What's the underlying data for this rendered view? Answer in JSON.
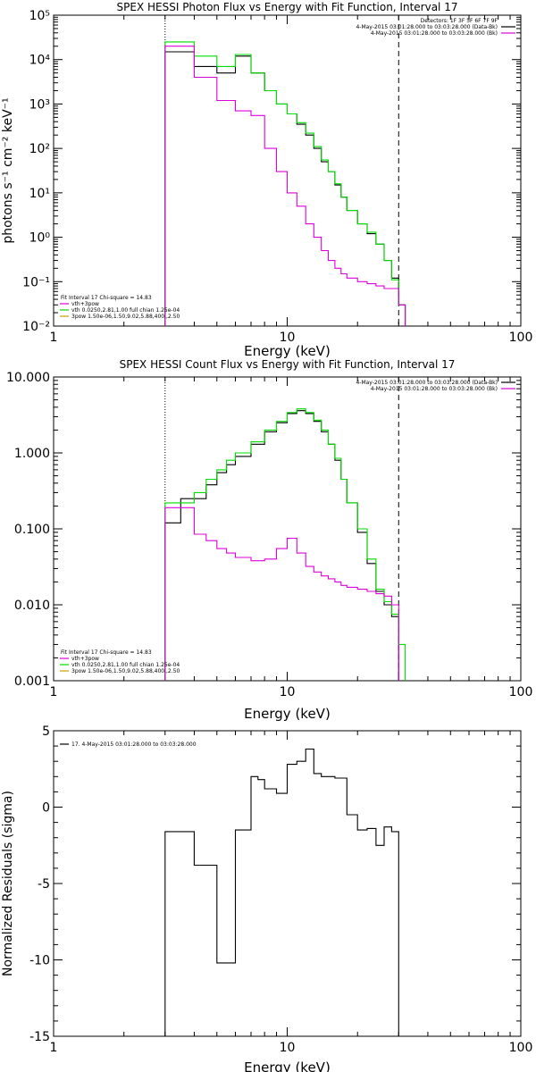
{
  "chart_data": [
    {
      "type": "line",
      "title": "SPEX HESSI Photon Flux vs Energy with Fit Function, Interval 17",
      "xlabel": "Energy (keV)",
      "ylabel": "photons s⁻¹ cm⁻² keV⁻¹",
      "xscale": "log",
      "yscale": "log",
      "xlim": [
        1,
        100
      ],
      "ylim": [
        0.01,
        100000
      ],
      "xticks": [
        1,
        10,
        100
      ],
      "xticklabels": [
        "1",
        "10",
        "100"
      ],
      "yticks": [
        0.01,
        0.1,
        1,
        10,
        100,
        1000,
        10000,
        100000
      ],
      "yticklabels": [
        "10⁻²",
        "10⁻¹",
        "10⁰",
        "10¹",
        "10²",
        "10³",
        "10⁴",
        "10⁵"
      ],
      "legend_right": [
        "Detectors: 1F 3F 5F 6F 7F 9F",
        "4-May-2015 03:01:28.000 to 03:03:28.000 (Data-Bk)",
        "4-May-2015 03:01:28.000 to 03:03:28.000 (Bk)"
      ],
      "legend_left": [
        "Fit Interval 17    Chi-square = 14.83",
        "vth+3pow",
        "vth 0.0250,2.81,1.00  full chian 1.25e-04",
        "3pow 1.50e-06,1.50,9.02,5.88,400.,2.50"
      ],
      "vlines": [
        {
          "x": 3.0,
          "style": "dotted"
        },
        {
          "x": 30.0,
          "style": "dashed"
        }
      ],
      "edges": [
        3.0,
        3.5,
        4.0,
        4.5,
        5.0,
        5.5,
        6.0,
        7.0,
        8.0,
        9.0,
        10.0,
        11.0,
        12.0,
        13.0,
        14.0,
        15.0,
        16.0,
        17.0,
        18.0,
        20.0,
        22.0,
        24.0,
        26.0,
        28.0,
        30.0,
        32.0
      ],
      "series": [
        {
          "color": "#000000",
          "values": [
            15000,
            15000,
            7000,
            7000,
            5000,
            5000,
            12000,
            5000,
            2000,
            1000,
            600,
            350,
            200,
            100,
            50,
            30,
            15,
            8,
            4,
            2,
            1.2,
            0.7,
            0.3,
            0.12,
            0.03,
            null
          ]
        },
        {
          "color": "#00dd00",
          "values": [
            25000,
            25000,
            12000,
            12000,
            7000,
            7000,
            13000,
            5000,
            2000,
            1000,
            600,
            380,
            220,
            110,
            55,
            30,
            16,
            8,
            4,
            2,
            1.3,
            0.7,
            0.3,
            0.11,
            0.03,
            0.012
          ]
        },
        {
          "color": "#dd00dd",
          "values": [
            20000,
            20000,
            4000,
            4000,
            1200,
            1200,
            700,
            550,
            100,
            30,
            10,
            5,
            2,
            1,
            0.5,
            0.3,
            0.2,
            0.15,
            0.12,
            0.1,
            0.09,
            0.08,
            0.07,
            0.07,
            0.03,
            null
          ]
        }
      ]
    },
    {
      "type": "line",
      "title": "SPEX HESSI Count Flux vs Energy with Fit Function, Interval 17",
      "xlabel": "Energy (keV)",
      "ylabel": "",
      "xscale": "log",
      "yscale": "log",
      "xlim": [
        1,
        100
      ],
      "ylim": [
        0.001,
        10
      ],
      "xticks": [
        1,
        10,
        100
      ],
      "xticklabels": [
        "1",
        "10",
        "100"
      ],
      "yticks": [
        0.001,
        0.01,
        0.1,
        1,
        10
      ],
      "yticklabels": [
        "0.001",
        "0.010",
        "0.100",
        "1.000",
        "10.000"
      ],
      "legend_right": [
        "4-May-2015 03:01:28.000 to 03:03:28.000 (Data-Bk)",
        "4-May-2015 03:01:28.000 to 03:03:28.000 (Bk)"
      ],
      "legend_left": [
        "Fit Interval 17    Chi-square = 14.83",
        "vth+3pow",
        "vth 0.0250,2.81,1.00  full chian 1.25e-04",
        "3pow 1.50e-06,1.50,9.02,5.88,400.,2.50"
      ],
      "vlines": [
        {
          "x": 3.0,
          "style": "dotted"
        },
        {
          "x": 30.0,
          "style": "dashed"
        }
      ],
      "edges": [
        3.0,
        3.5,
        4.0,
        4.5,
        5.0,
        5.5,
        6.0,
        7.0,
        8.0,
        9.0,
        10.0,
        11.0,
        12.0,
        13.0,
        14.0,
        15.0,
        16.0,
        17.0,
        18.0,
        20.0,
        22.0,
        24.0,
        26.0,
        28.0,
        30.0,
        32.0
      ],
      "series": [
        {
          "color": "#000000",
          "values": [
            0.12,
            0.25,
            0.25,
            0.38,
            0.55,
            0.7,
            0.9,
            1.3,
            1.9,
            2.5,
            3.3,
            3.6,
            3.3,
            2.6,
            1.9,
            1.3,
            0.8,
            0.45,
            0.22,
            0.09,
            0.035,
            0.015,
            0.01,
            0.007,
            0.0001,
            null
          ]
        },
        {
          "color": "#00dd00",
          "values": [
            0.22,
            0.22,
            0.3,
            0.45,
            0.6,
            0.8,
            1.0,
            1.4,
            2.0,
            2.6,
            3.4,
            3.8,
            3.4,
            2.7,
            2.0,
            1.3,
            0.85,
            0.45,
            0.22,
            0.1,
            0.04,
            0.016,
            0.011,
            0.0075,
            0.003,
            0.0001
          ]
        },
        {
          "color": "#dd00dd",
          "values": [
            0.19,
            0.19,
            0.085,
            0.07,
            0.055,
            0.048,
            0.042,
            0.038,
            0.04,
            0.055,
            0.075,
            0.048,
            0.032,
            0.027,
            0.024,
            0.022,
            0.02,
            0.018,
            0.017,
            0.016,
            0.015,
            0.014,
            0.013,
            0.01,
            0.0001,
            null
          ]
        }
      ]
    },
    {
      "type": "line",
      "title": "",
      "xlabel": "Energy (keV)",
      "ylabel": "Normalized Residuals (sigma)",
      "xscale": "log",
      "yscale": "linear",
      "xlim": [
        1,
        100
      ],
      "ylim": [
        -15,
        5
      ],
      "xticks": [
        1,
        10,
        100
      ],
      "xticklabels": [
        "1",
        "10",
        "100"
      ],
      "yticks": [
        -15,
        -10,
        -5,
        0,
        5
      ],
      "yticklabels": [
        "-15",
        "-10",
        "-5",
        "0",
        "5"
      ],
      "legend_left": [
        "17.  4-May-2015 03:01:28.000 to 03:03:28.000"
      ],
      "edges": [
        3.0,
        4.0,
        5.0,
        6.0,
        7.0,
        7.5,
        8.0,
        9.0,
        10.0,
        11.0,
        12.0,
        13.0,
        14.0,
        16.0,
        18.0,
        20.0,
        22.0,
        24.0,
        26.0,
        28.0,
        30.0
      ],
      "series": [
        {
          "color": "#000000",
          "values": [
            -1.6,
            -3.8,
            -10.2,
            -1.5,
            2.0,
            1.8,
            1.2,
            0.9,
            2.8,
            3.0,
            3.8,
            2.2,
            2.0,
            1.9,
            -0.5,
            -1.5,
            -1.4,
            -2.5,
            -1.3,
            -1.6
          ]
        }
      ]
    }
  ]
}
